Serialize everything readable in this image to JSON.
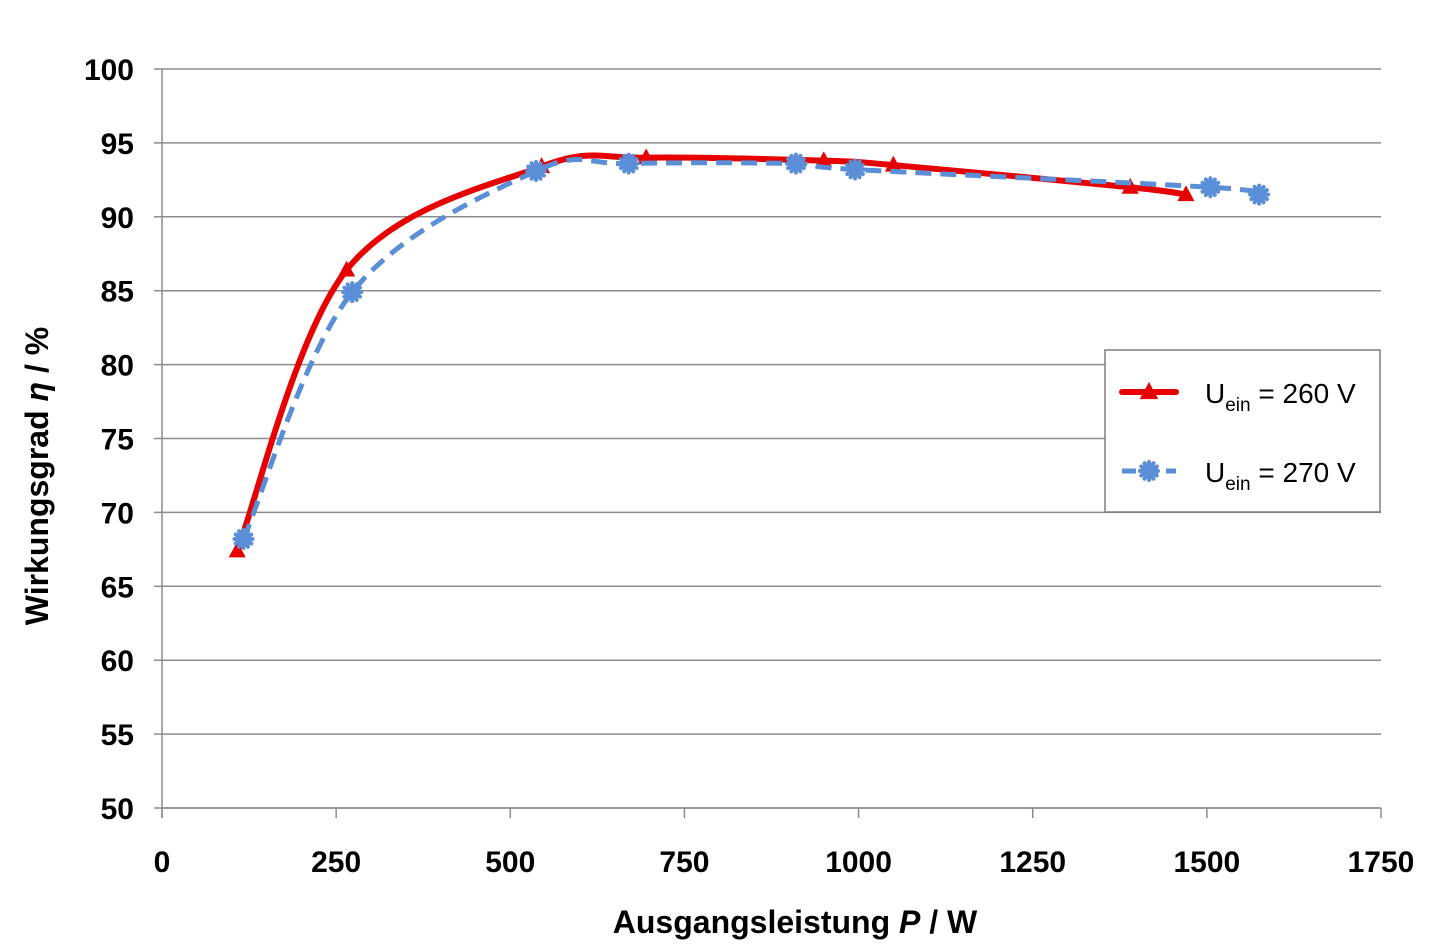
{
  "chart_data": {
    "type": "line",
    "title": "",
    "xlabel_prefix": "Ausgangsleistung",
    "xlabel_symbol": "P",
    "xlabel_unit": "/ W",
    "ylabel_prefix": "Wirkungsgrad",
    "ylabel_symbol": "η",
    "ylabel_unit": "/ %",
    "xlim": [
      0,
      1750
    ],
    "ylim": [
      50,
      100
    ],
    "x_ticks": [
      0,
      250,
      500,
      750,
      1000,
      1250,
      1500,
      1750
    ],
    "y_ticks": [
      50,
      55,
      60,
      65,
      70,
      75,
      80,
      85,
      90,
      95,
      100
    ],
    "grid": "horizontal",
    "legend_position": "right",
    "series": [
      {
        "legend_main": "U",
        "legend_sub": "ein",
        "legend_rest": " = 260 V",
        "color": "#e60000",
        "line_style": "solid",
        "marker": "triangle",
        "x": [
          108,
          265,
          545,
          695,
          950,
          1050,
          1390,
          1470
        ],
        "y": [
          67.4,
          86.4,
          93.4,
          94.0,
          93.8,
          93.5,
          92.0,
          91.5
        ]
      },
      {
        "legend_main": "U",
        "legend_sub": "ein",
        "legend_rest": " = 270 V",
        "color": "#5a8ed6",
        "line_style": "dashed",
        "marker": "star",
        "x": [
          117,
          273,
          537,
          670,
          910,
          995,
          1505,
          1575
        ],
        "y": [
          68.2,
          84.9,
          93.1,
          93.6,
          93.6,
          93.2,
          92.0,
          91.5
        ]
      }
    ]
  }
}
